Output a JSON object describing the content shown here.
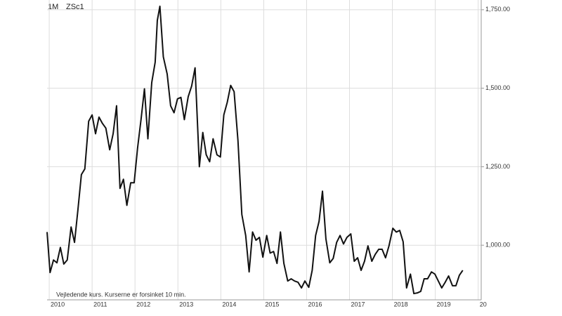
{
  "chart_data": {
    "type": "line",
    "interval": "1M",
    "title": "ZSc1",
    "note": "Vejledende kurs. Kurserne er forsinket 10 min.",
    "color": "#111111",
    "grid": true,
    "x": [
      2009.95,
      2010.02,
      2010.1,
      2010.18,
      2010.26,
      2010.34,
      2010.42,
      2010.51,
      2010.59,
      2010.67,
      2010.75,
      2010.83,
      2010.92,
      2011.0,
      2011.08,
      2011.16,
      2011.24,
      2011.32,
      2011.41,
      2011.49,
      2011.57,
      2011.65,
      2011.73,
      2011.81,
      2011.9,
      2011.98,
      2012.06,
      2012.14,
      2012.22,
      2012.3,
      2012.39,
      2012.47,
      2012.52,
      2012.58,
      2012.66,
      2012.75,
      2012.83,
      2012.91,
      2012.99,
      2013.07,
      2013.15,
      2013.24,
      2013.32,
      2013.4,
      2013.5,
      2013.58,
      2013.66,
      2013.74,
      2013.82,
      2013.91,
      2013.99,
      2014.07,
      2014.15,
      2014.23,
      2014.31,
      2014.4,
      2014.49,
      2014.58,
      2014.66,
      2014.74,
      2014.82,
      2014.9,
      2014.98,
      2015.07,
      2015.15,
      2015.23,
      2015.31,
      2015.39,
      2015.47,
      2015.56,
      2015.64,
      2015.72,
      2015.8,
      2015.88,
      2015.96,
      2016.05,
      2016.13,
      2016.21,
      2016.29,
      2016.37,
      2016.45,
      2016.54,
      2016.62,
      2016.7,
      2016.78,
      2016.86,
      2016.94,
      2017.03,
      2017.11,
      2017.19,
      2017.27,
      2017.35,
      2017.43,
      2017.52,
      2017.6,
      2017.68,
      2017.76,
      2017.84,
      2017.92,
      2018.01,
      2018.09,
      2018.17,
      2018.25,
      2018.33,
      2018.42,
      2018.5,
      2018.58,
      2018.66,
      2018.74,
      2018.82,
      2018.91,
      2018.99,
      2019.07,
      2019.15,
      2019.23,
      2019.31,
      2019.4,
      2019.48,
      2019.56,
      2019.64
    ],
    "values": [
      1042,
      913,
      953,
      944,
      993,
      940,
      953,
      1058,
      1009,
      1114,
      1225,
      1243,
      1395,
      1415,
      1355,
      1408,
      1388,
      1373,
      1304,
      1355,
      1444,
      1181,
      1210,
      1127,
      1199,
      1199,
      1310,
      1400,
      1498,
      1339,
      1518,
      1583,
      1716,
      1761,
      1600,
      1545,
      1444,
      1422,
      1466,
      1471,
      1400,
      1473,
      1507,
      1565,
      1250,
      1359,
      1288,
      1266,
      1339,
      1288,
      1281,
      1415,
      1455,
      1509,
      1489,
      1333,
      1098,
      1031,
      915,
      1042,
      1016,
      1025,
      962,
      1031,
      975,
      980,
      942,
      1042,
      942,
      886,
      893,
      886,
      882,
      864,
      886,
      866,
      920,
      1031,
      1076,
      1172,
      1020,
      944,
      958,
      1009,
      1031,
      1004,
      1025,
      1036,
      949,
      960,
      920,
      949,
      998,
      949,
      971,
      987,
      987,
      960,
      998,
      1054,
      1042,
      1047,
      1011,
      864,
      908,
      846,
      848,
      853,
      893,
      893,
      915,
      908,
      886,
      864,
      882,
      902,
      871,
      871,
      904,
      920
    ],
    "xlim": [
      2009.95,
      2020.07
    ],
    "xticks": [
      2010,
      2011,
      2012,
      2013,
      2014,
      2015,
      2016,
      2017,
      2018,
      2019,
      {
        "value": 2020,
        "label": "20"
      }
    ],
    "ylim": [
      826,
      1781
    ],
    "yticks": [
      {
        "value": 1000,
        "label": "1,000.00"
      },
      {
        "value": 1250,
        "label": "1,250.00"
      },
      {
        "value": 1500,
        "label": "1,500.00"
      },
      {
        "value": 1750,
        "label": "1,750.00"
      }
    ]
  }
}
